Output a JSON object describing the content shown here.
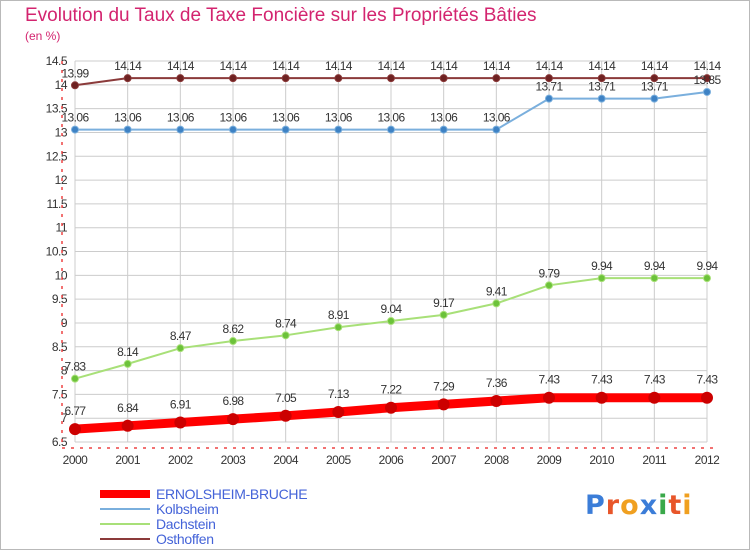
{
  "header": {
    "title": "Evolution du Taux de Taxe Foncière sur les Propriétés Bâties",
    "unit": "(en %)"
  },
  "brand": {
    "text": "Proxiti",
    "colors": [
      "#3b7dd8",
      "#e8562a",
      "#f0a020",
      "#3b7dd8",
      "#3aa84a",
      "#e8562a",
      "#f0a020"
    ]
  },
  "colors": {
    "grid": "#cccccc",
    "axis": "#ee4444",
    "tick_text": "#333333",
    "title": "#d3246f",
    "legend_text": "#4463d8"
  },
  "chart_data": {
    "type": "line",
    "x": [
      "2000",
      "2001",
      "2002",
      "2003",
      "2004",
      "2005",
      "2006",
      "2007",
      "2008",
      "2009",
      "2010",
      "2011",
      "2012"
    ],
    "ylim": [
      6.5,
      14.5
    ],
    "yticks": [
      "6.5",
      "7",
      "7.5",
      "8",
      "8.5",
      "9",
      "9.5",
      "10",
      "10.5",
      "11",
      "11.5",
      "12",
      "12.5",
      "13",
      "13.5",
      "14",
      "14.5"
    ],
    "grid": true,
    "legend_position": "bottom-left",
    "series": [
      {
        "name": "ERNOLSHEIM-BRUCHE",
        "color": "#ff0000",
        "marker": "#cc0000",
        "width": 9,
        "values": [
          6.77,
          6.84,
          6.91,
          6.98,
          7.05,
          7.13,
          7.22,
          7.29,
          7.36,
          7.43,
          7.43,
          7.43,
          7.43
        ],
        "labels": [
          "6.77",
          "6.84",
          "6.91",
          "6.98",
          "7.05",
          "7.13",
          "7.22",
          "7.29",
          "7.36",
          "7.43",
          "7.43",
          "7.43",
          "7.43"
        ]
      },
      {
        "name": "Kolbsheim",
        "color": "#7aafdd",
        "marker": "#3e82c4",
        "width": 2,
        "values": [
          13.06,
          13.06,
          13.06,
          13.06,
          13.06,
          13.06,
          13.06,
          13.06,
          13.06,
          13.71,
          13.71,
          13.71,
          13.85
        ],
        "labels": [
          "13.06",
          "13.06",
          "13.06",
          "13.06",
          "13.06",
          "13.06",
          "13.06",
          "13.06",
          "13.06",
          "13.71",
          "13.71",
          "13.71",
          "13.85"
        ]
      },
      {
        "name": "Dachstein",
        "color": "#a8e078",
        "marker": "#6cc23a",
        "width": 2,
        "values": [
          7.83,
          8.14,
          8.47,
          8.62,
          8.74,
          8.91,
          9.04,
          9.17,
          9.41,
          9.79,
          9.94,
          9.94,
          9.94
        ],
        "labels": [
          "7.83",
          "8.14",
          "8.47",
          "8.62",
          "8.74",
          "8.91",
          "9.04",
          "9.17",
          "9.41",
          "9.79",
          "9.94",
          "9.94",
          "9.94"
        ]
      },
      {
        "name": "Osthoffen",
        "color": "#8b3a3a",
        "marker": "#6e2222",
        "width": 2,
        "values": [
          13.99,
          14.14,
          14.14,
          14.14,
          14.14,
          14.14,
          14.14,
          14.14,
          14.14,
          14.14,
          14.14,
          14.14,
          14.14
        ],
        "labels": [
          "13.99",
          "14.14",
          "14.14",
          "14.14",
          "14.14",
          "14.14",
          "14.14",
          "14.14",
          "14.14",
          "14.14",
          "14.14",
          "14.14",
          "14.14"
        ]
      }
    ]
  }
}
